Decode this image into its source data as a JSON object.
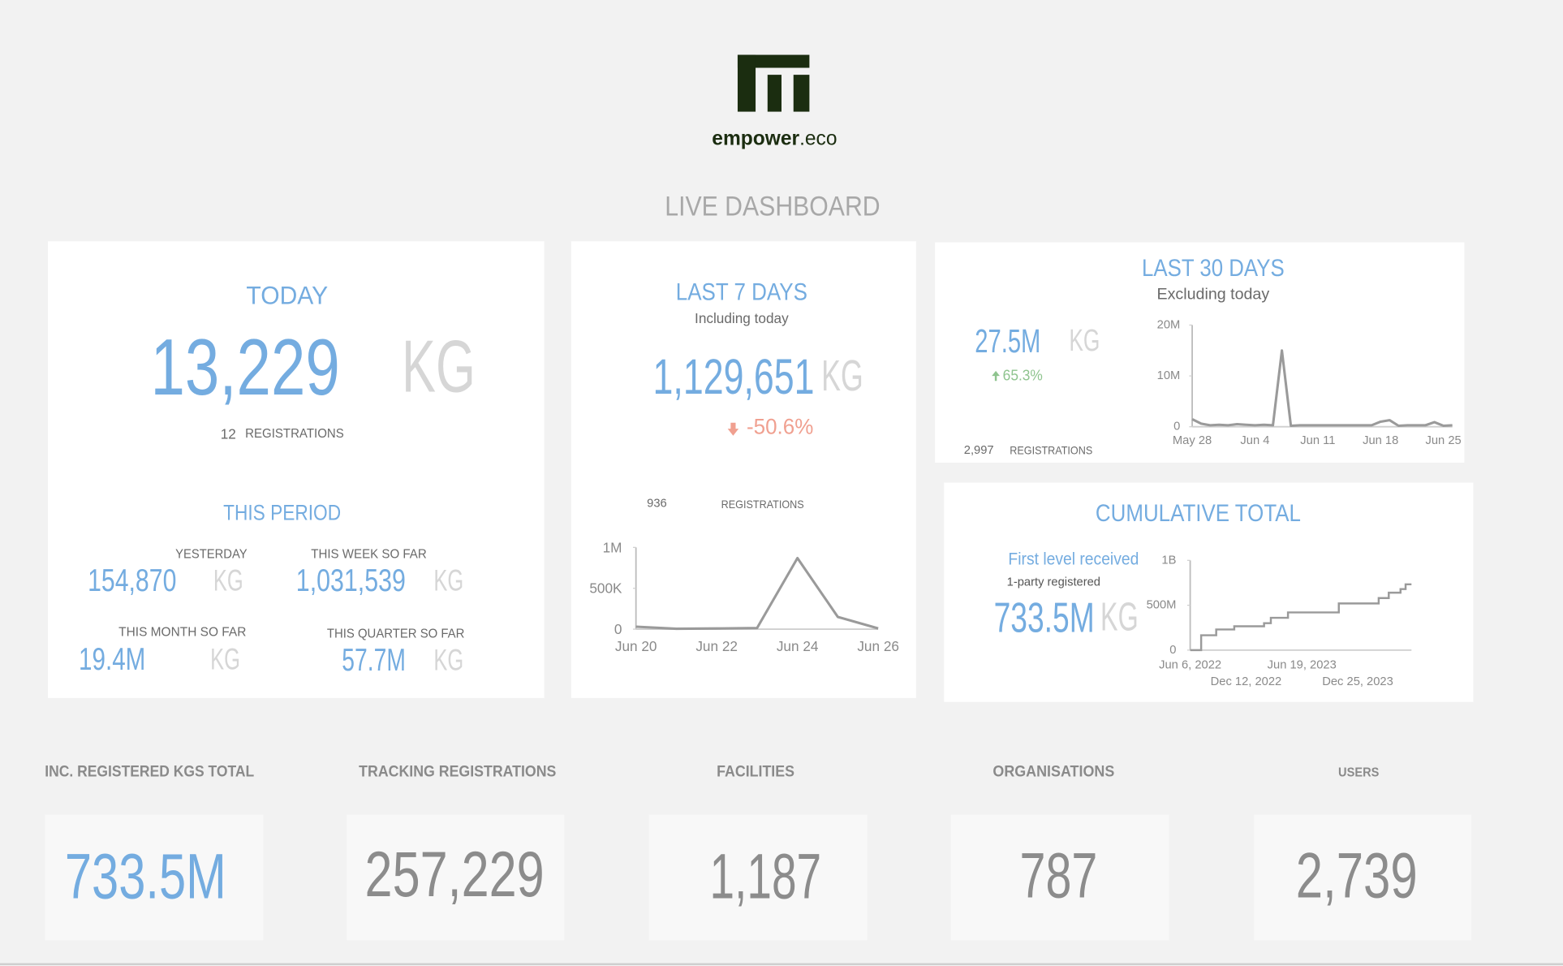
{
  "brand": {
    "name": "empower",
    "suffix": ".eco"
  },
  "title": "LIVE DASHBOARD",
  "today": {
    "title": "TODAY",
    "value": "13,229",
    "unit": "KG",
    "registrations_count": "12",
    "registrations_label": "REGISTRATIONS"
  },
  "this_period": {
    "title": "THIS PERIOD",
    "items": [
      {
        "label": "YESTERDAY",
        "value": "154,870",
        "unit": "KG"
      },
      {
        "label": "THIS WEEK SO FAR",
        "value": "1,031,539",
        "unit": "KG"
      },
      {
        "label": "THIS MONTH SO FAR",
        "value": "19.4M",
        "unit": "KG"
      },
      {
        "label": "THIS QUARTER SO FAR",
        "value": "57.7M",
        "unit": "KG"
      }
    ]
  },
  "last_7_days": {
    "title": "LAST 7 DAYS",
    "subtitle": "Including today",
    "value": "1,129,651",
    "unit": "KG",
    "change": "-50.6%",
    "registrations_count": "936",
    "registrations_label": "REGISTRATIONS",
    "chart": {
      "type": "line",
      "color": "#9a9a9a",
      "categories": [
        "Jun 20",
        null,
        "Jun 22",
        null,
        "Jun 24",
        null,
        "Jun 26"
      ],
      "values": [
        30000,
        5000,
        8000,
        15000,
        870000,
        150000,
        10000
      ],
      "ylim": [
        0,
        1000000
      ],
      "yticks": [
        0,
        {
          "value": 500000,
          "label": "500K"
        },
        {
          "value": 1000000,
          "label": "1M"
        }
      ]
    }
  },
  "last_30_days": {
    "title": "LAST 30 DAYS",
    "subtitle": "Excluding today",
    "value": "27.5M",
    "unit": "KG",
    "change": "65.3%",
    "registrations_count": "2,997",
    "registrations_label": "REGISTRATIONS",
    "chart": {
      "type": "line",
      "color": "#9a9a9a",
      "categories": [
        "May 28",
        null,
        null,
        null,
        null,
        null,
        null,
        "Jun 4",
        null,
        null,
        null,
        null,
        null,
        null,
        "Jun 11",
        null,
        null,
        null,
        null,
        null,
        null,
        "Jun 18",
        null,
        null,
        null,
        null,
        null,
        null,
        "Jun 25",
        null
      ],
      "values": [
        1500000,
        600000,
        300000,
        400000,
        300000,
        500000,
        400000,
        300000,
        400000,
        300000,
        15000000,
        200000,
        300000,
        300000,
        300000,
        300000,
        300000,
        300000,
        300000,
        300000,
        300000,
        1000000,
        1300000,
        200000,
        300000,
        300000,
        300000,
        900000,
        200000,
        300000
      ],
      "ylim": [
        0,
        20000000
      ],
      "yticks": [
        0,
        {
          "value": 10000000,
          "label": "10M"
        },
        {
          "value": 20000000,
          "label": "20M"
        }
      ]
    }
  },
  "cumulative_total": {
    "title": "CUMULATIVE TOTAL",
    "label": "First level received",
    "sublabel": "1-party registered",
    "value": "733.5M",
    "unit": "KG",
    "chart": {
      "type": "step",
      "color": "#9a9a9a",
      "x": [
        "2022-06-06",
        "2022-07-13",
        "2022-09-02",
        "2022-11-02",
        "2023-02-11",
        "2023-03-06",
        "2023-05-03",
        "2023-10-22",
        "2024-03-05",
        "2024-04-08",
        "2024-05-18",
        "2024-06-04"
      ],
      "values": [
        0,
        165000000,
        230000000,
        265000000,
        300000000,
        360000000,
        420000000,
        520000000,
        580000000,
        640000000,
        680000000,
        733500000
      ],
      "xlim": [
        "2022-06-06",
        "2024-06-24"
      ],
      "xticks": [
        {
          "value": "2022-06-06",
          "label": "Jun 6, 2022"
        },
        {
          "value": "2022-12-12",
          "label": "Dec 12, 2022"
        },
        {
          "value": "2023-06-19",
          "label": "Jun 19, 2023"
        },
        {
          "value": "2023-12-25",
          "label": "Dec 25, 2023"
        }
      ],
      "ylim": [
        0,
        1000000000
      ],
      "yticks": [
        0,
        {
          "value": 500000000,
          "label": "500M"
        },
        {
          "value": 1000000000,
          "label": "1B"
        }
      ]
    }
  },
  "kpis": [
    {
      "label": "INC. REGISTERED KGS TOTAL",
      "value": "733.5M"
    },
    {
      "label": "TRACKING REGISTRATIONS",
      "value": "257,229"
    },
    {
      "label": "FACILITIES",
      "value": "1,187"
    },
    {
      "label": "ORGANISATIONS",
      "value": "787"
    },
    {
      "label": "USERS",
      "value": "2,739"
    }
  ]
}
